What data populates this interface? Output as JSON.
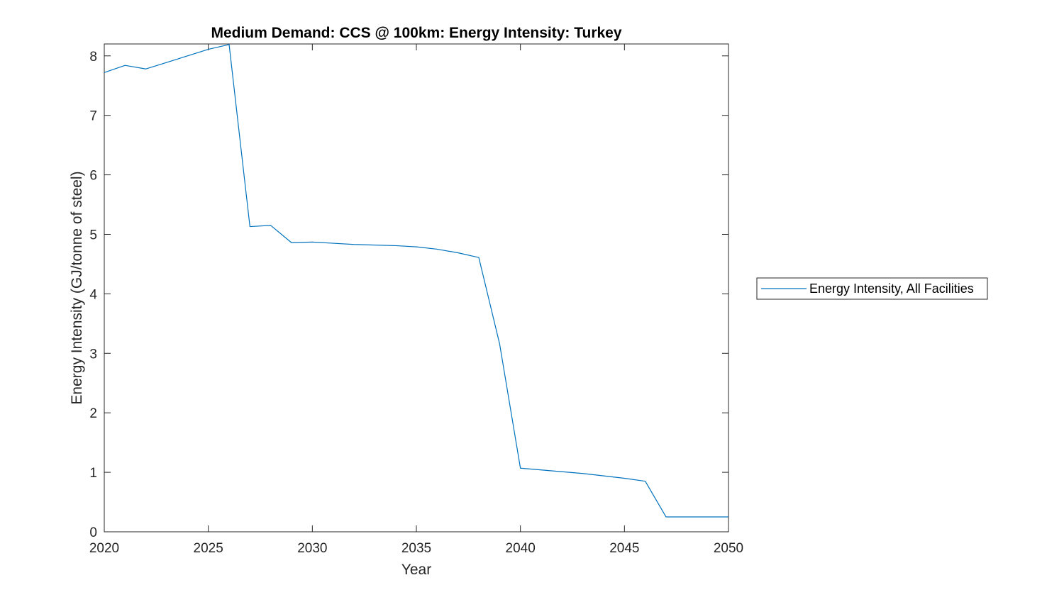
{
  "chart_data": {
    "type": "line",
    "title": "Medium Demand: CCS @ 100km: Energy Intensity: Turkey",
    "xlabel": "Year",
    "ylabel": "Energy Intensity (GJ/tonne of steel)",
    "xlim": [
      2020,
      2050
    ],
    "ylim": [
      0,
      8.2
    ],
    "xticks": [
      2020,
      2025,
      2030,
      2035,
      2040,
      2045,
      2050
    ],
    "yticks": [
      0,
      1,
      2,
      3,
      4,
      5,
      6,
      7,
      8
    ],
    "grid": false,
    "legend_position": "outside-right",
    "series": [
      {
        "name": "Energy Intensity, All Facilities",
        "color": "#0072BD",
        "x": [
          2020,
          2021,
          2022,
          2023,
          2024,
          2025,
          2026,
          2027,
          2028,
          2029,
          2030,
          2031,
          2032,
          2033,
          2034,
          2035,
          2036,
          2037,
          2038,
          2039,
          2040,
          2041,
          2042,
          2043,
          2044,
          2045,
          2046,
          2047,
          2048,
          2049,
          2050
        ],
        "y": [
          7.72,
          7.84,
          7.78,
          7.89,
          8.0,
          8.11,
          8.19,
          5.13,
          5.15,
          4.86,
          4.87,
          4.85,
          4.83,
          4.82,
          4.81,
          4.79,
          4.75,
          4.69,
          4.61,
          3.16,
          1.07,
          1.04,
          1.01,
          0.98,
          0.94,
          0.9,
          0.85,
          0.25,
          0.25,
          0.25,
          0.25
        ]
      }
    ]
  }
}
